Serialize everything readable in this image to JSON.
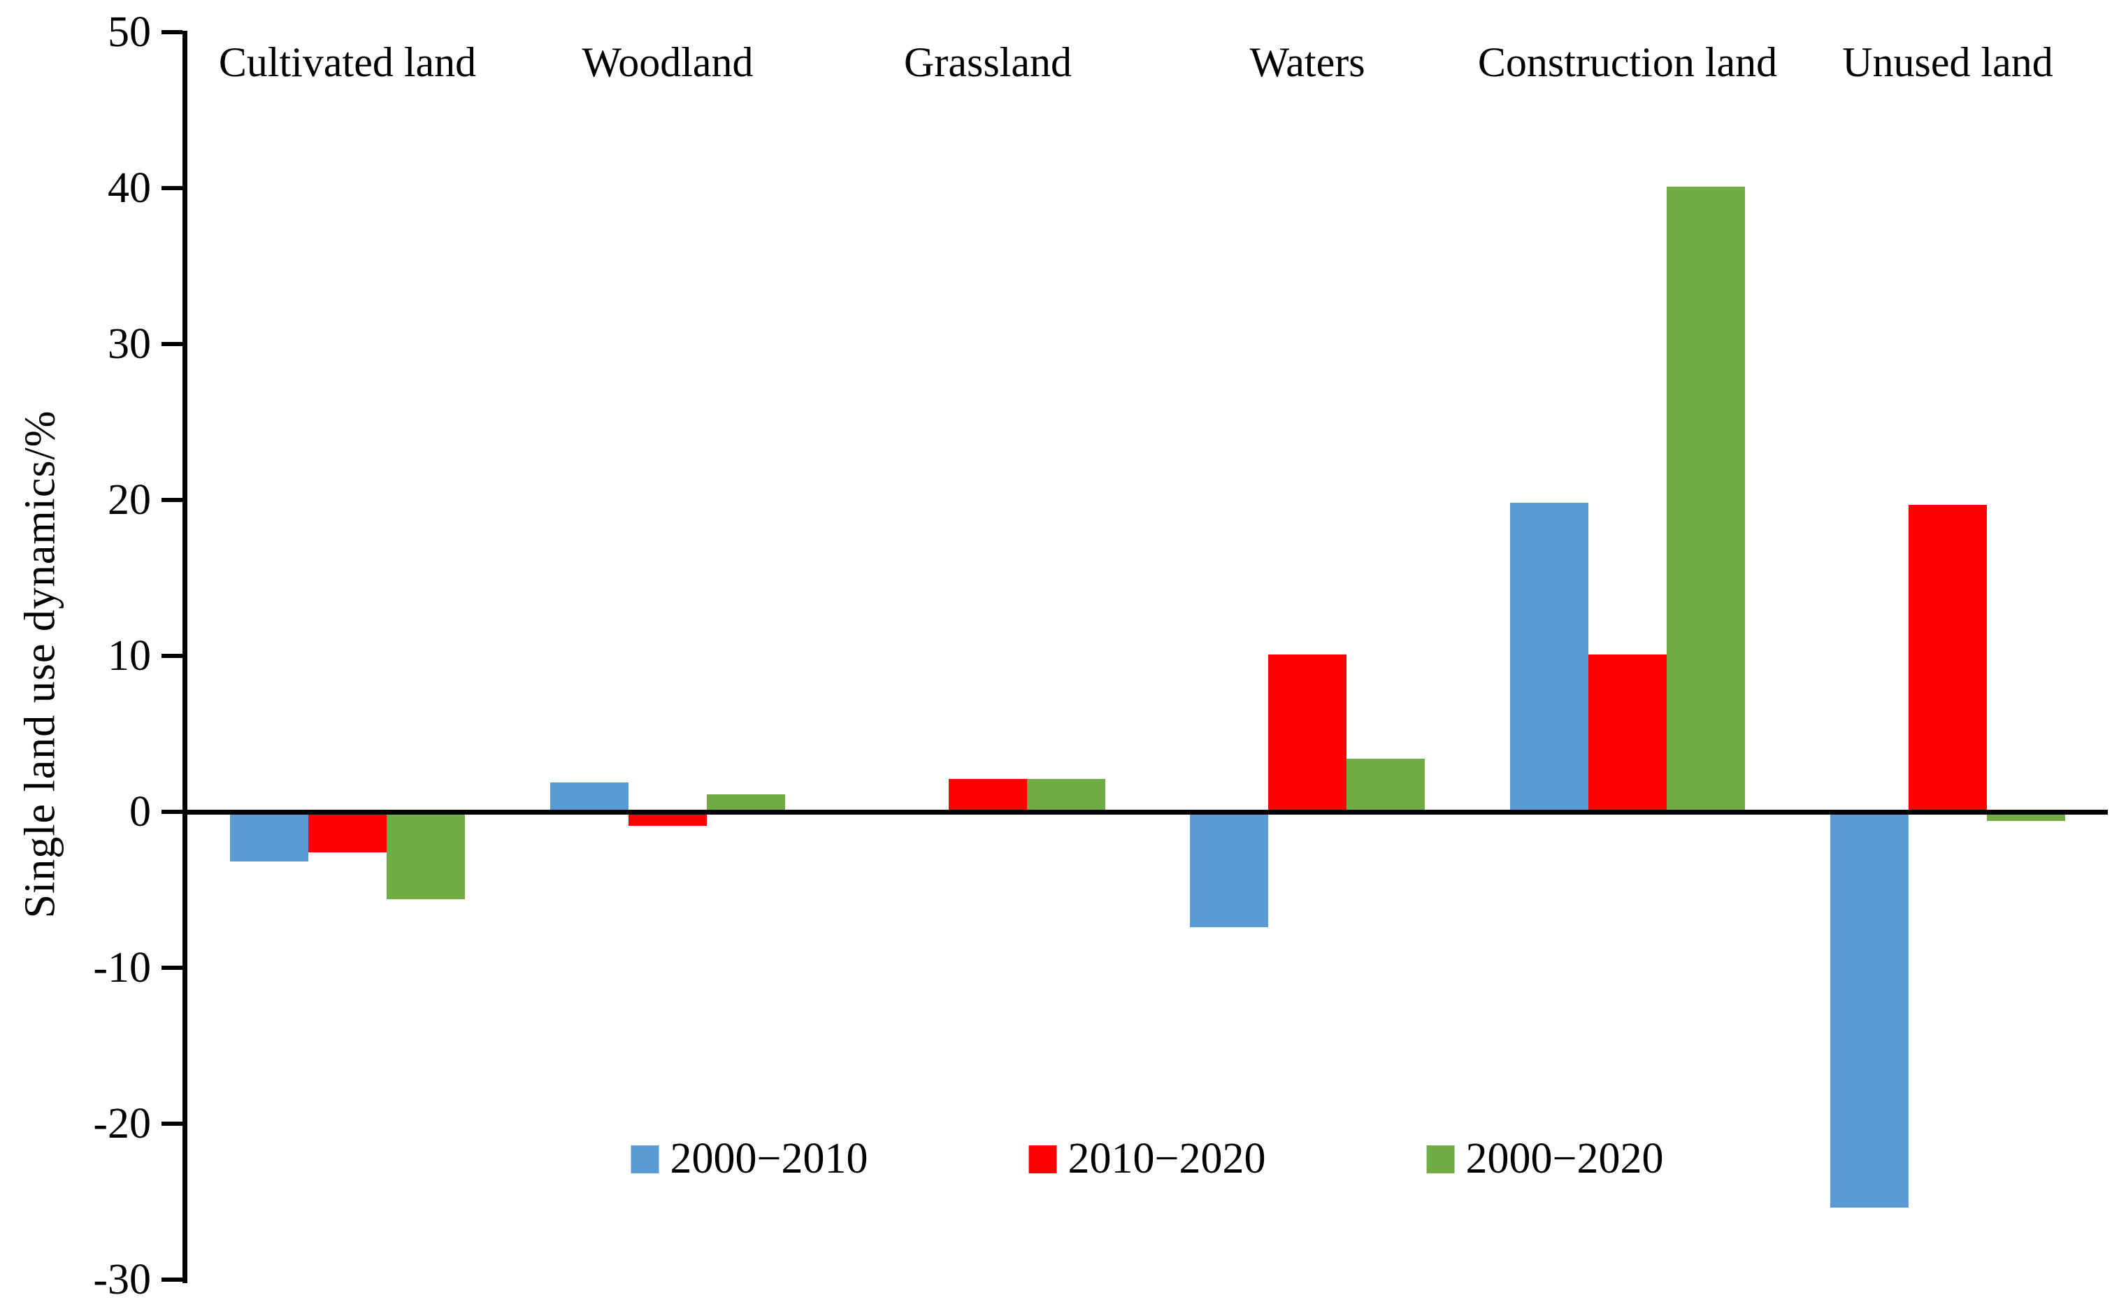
{
  "chart_data": {
    "type": "bar",
    "title": "",
    "ylabel": "Single land use dynamics/%",
    "categories": [
      "Cultivated land",
      "Woodland",
      "Grassland",
      "Waters",
      "Construction land",
      "Unused land"
    ],
    "series": [
      {
        "name": "2000−2010",
        "color": "#5B9BD5",
        "values": [
          -3.2,
          1.9,
          -0.2,
          -7.4,
          19.8,
          -25.4
        ]
      },
      {
        "name": "2010−2020",
        "color": "#FF0000",
        "values": [
          -2.6,
          -0.9,
          2.1,
          10.1,
          10.1,
          19.7
        ]
      },
      {
        "name": "2000−2020",
        "color": "#70AD47",
        "values": [
          -5.6,
          1.1,
          2.1,
          3.4,
          40.1,
          -0.6
        ]
      }
    ],
    "ylim": [
      -30,
      50
    ],
    "yticks": [
      50,
      40,
      30,
      20,
      10,
      0,
      -10,
      -20,
      -30
    ],
    "grid": false,
    "legend_position": "bottom-center",
    "axis_color": "#000000",
    "category_label_position": "top"
  }
}
